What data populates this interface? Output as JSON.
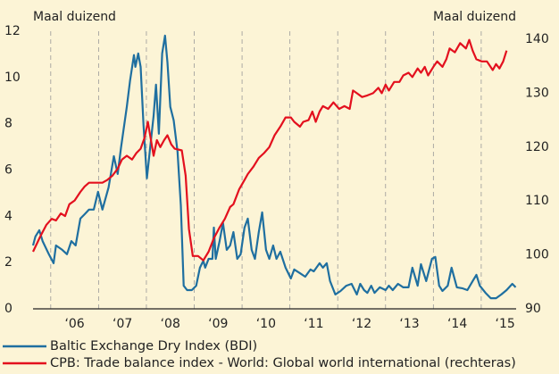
{
  "chart_data": {
    "type": "line",
    "y_label": "Maal duizend",
    "y2_label": "Maal duizend",
    "xlim": [
      2005.63,
      2015.73
    ],
    "xticks": [
      {
        "value": 2006,
        "label": "‘06"
      },
      {
        "value": 2007,
        "label": "‘07"
      },
      {
        "value": 2008,
        "label": "‘08"
      },
      {
        "value": 2009,
        "label": "‘09"
      },
      {
        "value": 2010,
        "label": "‘10"
      },
      {
        "value": 2011,
        "label": "‘11"
      },
      {
        "value": 2012,
        "label": "‘12"
      },
      {
        "value": 2013,
        "label": "‘13"
      },
      {
        "value": 2014,
        "label": "‘14"
      },
      {
        "value": 2015,
        "label": "‘15"
      }
    ],
    "ylim": [
      0,
      12
    ],
    "yticks": [
      0,
      2,
      4,
      6,
      8,
      10,
      12
    ],
    "y2lim": [
      90,
      141.5
    ],
    "y2ticks": [
      90,
      100,
      110,
      120,
      130,
      140
    ],
    "grid": true,
    "series": [
      {
        "name": "Baltic Exchange Dry Index (BDI)",
        "color": "#1f6fa0",
        "axis": "y",
        "x": [
          2005.63,
          2005.68,
          2005.76,
          2005.83,
          2005.96,
          2006.06,
          2006.11,
          2006.24,
          2006.34,
          2006.43,
          2006.52,
          2006.62,
          2006.71,
          2006.8,
          2006.9,
          2006.99,
          2007.08,
          2007.21,
          2007.32,
          2007.4,
          2007.47,
          2007.59,
          2007.66,
          2007.74,
          2007.77,
          2007.83,
          2007.88,
          2007.94,
          2008.01,
          2008.07,
          2008.15,
          2008.2,
          2008.26,
          2008.33,
          2008.39,
          2008.44,
          2008.5,
          2008.57,
          2008.65,
          2008.72,
          2008.78,
          2008.85,
          2008.95,
          2009.04,
          2009.12,
          2009.19,
          2009.23,
          2009.3,
          2009.38,
          2009.41,
          2009.45,
          2009.53,
          2009.6,
          2009.68,
          2009.75,
          2009.82,
          2009.9,
          2009.97,
          2010.05,
          2010.12,
          2010.2,
          2010.27,
          2010.35,
          2010.42,
          2010.5,
          2010.57,
          2010.65,
          2010.72,
          2010.8,
          2010.91,
          2011.02,
          2011.09,
          2011.21,
          2011.32,
          2011.43,
          2011.5,
          2011.62,
          2011.69,
          2011.77,
          2011.84,
          2011.95,
          2012.06,
          2012.18,
          2012.29,
          2012.4,
          2012.47,
          2012.55,
          2012.62,
          2012.7,
          2012.77,
          2012.88,
          2013.0,
          2013.07,
          2013.15,
          2013.26,
          2013.37,
          2013.48,
          2013.56,
          2013.67,
          2013.74,
          2013.85,
          2013.97,
          2014.04,
          2014.12,
          2014.19,
          2014.3,
          2014.38,
          2014.49,
          2014.6,
          2014.71,
          2014.82,
          2014.9,
          2014.97,
          2015.09,
          2015.2,
          2015.31,
          2015.42,
          2015.53,
          2015.65,
          2015.72
        ],
        "values": [
          2.74,
          3.13,
          3.4,
          2.93,
          2.36,
          1.97,
          2.74,
          2.55,
          2.36,
          2.93,
          2.74,
          3.9,
          4.09,
          4.29,
          4.29,
          5.06,
          4.29,
          5.25,
          6.6,
          5.83,
          6.99,
          8.73,
          9.88,
          10.97,
          10.46,
          11.04,
          10.46,
          7.95,
          5.64,
          6.8,
          8.34,
          9.69,
          7.57,
          11.04,
          11.81,
          10.66,
          8.73,
          8.15,
          6.8,
          4.48,
          1.0,
          0.81,
          0.81,
          1.0,
          1.78,
          2.08,
          1.78,
          2.16,
          2.16,
          3.51,
          2.16,
          2.93,
          3.71,
          2.55,
          2.74,
          3.32,
          2.16,
          2.36,
          3.51,
          3.9,
          2.55,
          2.16,
          3.32,
          4.17,
          2.55,
          2.16,
          2.74,
          2.16,
          2.47,
          1.78,
          1.31,
          1.7,
          1.54,
          1.39,
          1.7,
          1.62,
          1.97,
          1.78,
          1.97,
          1.2,
          0.62,
          0.77,
          1.0,
          1.08,
          0.62,
          1.08,
          0.81,
          0.69,
          1.0,
          0.69,
          0.93,
          0.81,
          1.0,
          0.81,
          1.08,
          0.93,
          0.93,
          1.78,
          1.0,
          1.93,
          1.2,
          2.16,
          2.24,
          1.0,
          0.77,
          1.0,
          1.78,
          0.93,
          0.89,
          0.81,
          1.2,
          1.47,
          1.0,
          0.69,
          0.46,
          0.46,
          0.62,
          0.81,
          1.08,
          0.93
        ]
      },
      {
        "name": "CPB: Trade balance index - World: Global world international (rechteras)",
        "color": "#e3101e",
        "axis": "y2",
        "x": [
          2005.63,
          2005.78,
          2005.91,
          2006.02,
          2006.11,
          2006.21,
          2006.3,
          2006.39,
          2006.5,
          2006.62,
          2006.71,
          2006.8,
          2006.9,
          2007.08,
          2007.18,
          2007.29,
          2007.4,
          2007.49,
          2007.59,
          2007.7,
          2007.79,
          2007.88,
          2007.96,
          2008.03,
          2008.15,
          2008.22,
          2008.29,
          2008.37,
          2008.44,
          2008.52,
          2008.59,
          2008.74,
          2008.82,
          2008.89,
          2008.97,
          2009.08,
          2009.19,
          2009.3,
          2009.41,
          2009.53,
          2009.64,
          2009.75,
          2009.82,
          2009.94,
          2010.05,
          2010.12,
          2010.24,
          2010.35,
          2010.46,
          2010.57,
          2010.68,
          2010.8,
          2010.91,
          2011.02,
          2011.09,
          2011.21,
          2011.28,
          2011.39,
          2011.47,
          2011.54,
          2011.62,
          2011.69,
          2011.8,
          2011.91,
          2012.03,
          2012.14,
          2012.25,
          2012.32,
          2012.4,
          2012.51,
          2012.62,
          2012.74,
          2012.85,
          2012.92,
          2013.0,
          2013.07,
          2013.18,
          2013.29,
          2013.37,
          2013.48,
          2013.56,
          2013.67,
          2013.74,
          2013.82,
          2013.89,
          2014.0,
          2014.08,
          2014.19,
          2014.27,
          2014.34,
          2014.45,
          2014.56,
          2014.68,
          2014.75,
          2014.82,
          2014.9,
          2015.01,
          2015.12,
          2015.24,
          2015.31,
          2015.38,
          2015.46,
          2015.53
        ],
        "values": [
          100.6,
          103.4,
          105.6,
          106.7,
          106.4,
          107.7,
          107.2,
          109.4,
          110.1,
          111.7,
          112.7,
          113.4,
          113.4,
          113.4,
          113.9,
          114.7,
          116.0,
          117.7,
          118.4,
          117.7,
          118.9,
          119.7,
          121.7,
          124.7,
          118.4,
          121.3,
          120.0,
          121.3,
          122.2,
          120.5,
          119.7,
          119.4,
          114.7,
          104.8,
          99.8,
          99.8,
          99.0,
          100.6,
          103.1,
          105.1,
          106.7,
          108.9,
          109.4,
          112.2,
          113.9,
          115.0,
          116.4,
          118.0,
          118.9,
          120.0,
          122.2,
          123.8,
          125.5,
          125.5,
          124.7,
          123.8,
          124.7,
          125.0,
          126.6,
          124.7,
          126.6,
          127.6,
          127.1,
          128.3,
          127.1,
          127.6,
          127.1,
          130.5,
          130.0,
          129.3,
          129.6,
          130.0,
          131.0,
          130.0,
          131.6,
          130.5,
          132.1,
          132.1,
          133.3,
          133.8,
          133.0,
          134.6,
          133.8,
          134.9,
          133.3,
          134.9,
          135.9,
          134.9,
          136.3,
          138.3,
          137.6,
          139.3,
          138.3,
          139.9,
          137.9,
          136.3,
          135.9,
          135.9,
          134.3,
          135.4,
          134.6,
          135.9,
          137.9
        ]
      }
    ]
  }
}
